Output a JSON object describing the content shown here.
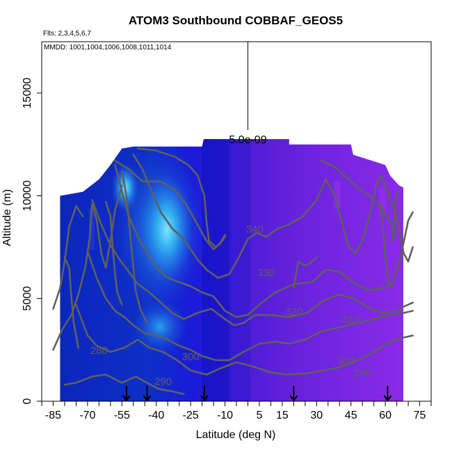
{
  "chart_data": {
    "type": "heatmap",
    "title": "ATOM3 Southbound COBBAF_GEOS5",
    "flights_label": "Flts: 2,3,4,5,6,7",
    "dates_label": "MMDD: 1001,1004,1006,1008,1011,1014",
    "xlabel": "Latitude (deg N)",
    "ylabel": "Altitude (m)",
    "xlim": [
      -90,
      80
    ],
    "ylim": [
      0,
      17500
    ],
    "x_ticks": [
      -85,
      -70,
      -55,
      -40,
      -25,
      -10,
      5,
      15,
      30,
      45,
      60,
      75
    ],
    "y_ticks": [
      0,
      5000,
      10000,
      15000
    ],
    "scale_bar_label": "5.0e-09",
    "scale_bar": {
      "x": 0,
      "y_from": 13200,
      "y_to": 17500
    },
    "flight_arrows_lat": [
      -53,
      -44,
      -19,
      20,
      61
    ],
    "contours": [
      {
        "label": "280",
        "points": [
          [
            -85,
            4500
          ],
          [
            -82,
            5500
          ],
          [
            -80,
            6800
          ],
          [
            -78,
            8500
          ],
          [
            -75,
            9500
          ],
          [
            -72,
            9000
          ]
        ]
      },
      {
        "label": "280",
        "points": [
          [
            -85,
            2500
          ],
          [
            -81,
            3500
          ],
          [
            -77,
            4200
          ],
          [
            -74,
            5200
          ],
          [
            -71,
            6500
          ],
          [
            -69,
            8000
          ],
          [
            -68,
            9600
          ],
          [
            -66,
            8800
          ],
          [
            -64,
            7200
          ],
          [
            -62,
            6500
          ],
          [
            -60,
            7800
          ],
          [
            -58,
            9300
          ],
          [
            -55,
            10500
          ]
        ]
      },
      {
        "label": "290",
        "points": [
          [
            -80,
            800
          ],
          [
            -75,
            900
          ],
          [
            -68,
            1200
          ],
          [
            -62,
            1300
          ],
          [
            -55,
            900
          ],
          [
            -49,
            1200
          ],
          [
            -44,
            900
          ],
          [
            -39,
            600
          ],
          [
            -34,
            500
          ],
          [
            -28,
            350
          ]
        ]
      },
      {
        "label": "300",
        "points": [
          [
            -75,
            4700
          ],
          [
            -70,
            3200
          ],
          [
            -66,
            2700
          ],
          [
            -60,
            2400
          ],
          [
            -54,
            2600
          ],
          [
            -48,
            3000
          ],
          [
            -43,
            2600
          ],
          [
            -37,
            2400
          ],
          [
            -31,
            2000
          ],
          [
            -25,
            1500
          ],
          [
            -18,
            1300
          ],
          [
            -12,
            1600
          ],
          [
            -5,
            1900
          ],
          [
            2,
            1700
          ],
          [
            10,
            1400
          ],
          [
            17,
            1300
          ],
          [
            25,
            1350
          ],
          [
            33,
            1500
          ],
          [
            40,
            1650
          ],
          [
            48,
            2000
          ],
          [
            55,
            2400
          ],
          [
            62,
            2900
          ],
          [
            68,
            3100
          ],
          [
            72,
            3200
          ]
        ]
      },
      {
        "label": "310",
        "points": [
          [
            -70,
            7300
          ],
          [
            -66,
            6000
          ],
          [
            -62,
            5000
          ],
          [
            -58,
            4400
          ],
          [
            -54,
            4100
          ],
          [
            -50,
            3700
          ],
          [
            -45,
            3300
          ],
          [
            -40,
            3200
          ],
          [
            -35,
            3000
          ],
          [
            -30,
            2700
          ],
          [
            -25,
            2500
          ],
          [
            -20,
            2200
          ],
          [
            -14,
            2000
          ],
          [
            -8,
            2000
          ],
          [
            -2,
            2400
          ],
          [
            5,
            2800
          ],
          [
            12,
            2900
          ],
          [
            18,
            2800
          ],
          [
            25,
            3000
          ],
          [
            32,
            3400
          ],
          [
            40,
            3600
          ],
          [
            48,
            3800
          ],
          [
            55,
            4000
          ],
          [
            62,
            4200
          ],
          [
            68,
            4300
          ],
          [
            72,
            4400
          ]
        ]
      },
      {
        "label": "320",
        "points": [
          [
            -68,
            9800
          ],
          [
            -64,
            8600
          ],
          [
            -60,
            7600
          ],
          [
            -56,
            6900
          ],
          [
            -52,
            6300
          ],
          [
            -48,
            5700
          ],
          [
            -43,
            5300
          ],
          [
            -38,
            4800
          ],
          [
            -33,
            4300
          ],
          [
            -28,
            4000
          ],
          [
            -22,
            4300
          ],
          [
            -16,
            4500
          ],
          [
            -10,
            4000
          ],
          [
            -6,
            3700
          ],
          [
            -2,
            3800
          ],
          [
            3,
            4200
          ],
          [
            10,
            4200
          ],
          [
            18,
            4100
          ],
          [
            26,
            4300
          ],
          [
            33,
            4900
          ],
          [
            40,
            5200
          ],
          [
            46,
            5000
          ],
          [
            52,
            4600
          ],
          [
            58,
            4300
          ],
          [
            64,
            4400
          ],
          [
            70,
            4700
          ],
          [
            72,
            4800
          ]
        ]
      },
      {
        "label": "330",
        "points": [
          [
            -58,
            11500
          ],
          [
            -55,
            10200
          ],
          [
            -52,
            9000
          ],
          [
            -48,
            8000
          ],
          [
            -44,
            7200
          ],
          [
            -40,
            6500
          ],
          [
            -35,
            6000
          ],
          [
            -30,
            5800
          ],
          [
            -25,
            5600
          ],
          [
            -20,
            5300
          ],
          [
            -15,
            5100
          ],
          [
            -10,
            4400
          ],
          [
            -5,
            4100
          ],
          [
            0,
            4200
          ],
          [
            5,
            4700
          ],
          [
            12,
            5300
          ],
          [
            20,
            5700
          ],
          [
            28,
            5800
          ],
          [
            34,
            6400
          ],
          [
            40,
            6300
          ],
          [
            46,
            5800
          ],
          [
            52,
            5400
          ],
          [
            58,
            5500
          ],
          [
            63,
            5700
          ],
          [
            67,
            7200
          ],
          [
            70,
            8800
          ],
          [
            72,
            9200
          ]
        ]
      },
      {
        "label": "340",
        "points": [
          [
            -50,
            12000
          ],
          [
            -46,
            11300
          ],
          [
            -42,
            10200
          ],
          [
            -38,
            9200
          ],
          [
            -33,
            8400
          ],
          [
            -28,
            7900
          ],
          [
            -22,
            6900
          ],
          [
            -18,
            6400
          ],
          [
            -13,
            6000
          ],
          [
            -8,
            6200
          ],
          [
            -4,
            7000
          ],
          [
            0,
            7900
          ],
          [
            4,
            8200
          ],
          [
            8,
            8000
          ],
          [
            13,
            8400
          ],
          [
            18,
            8600
          ],
          [
            24,
            9000
          ],
          [
            30,
            9800
          ],
          [
            34,
            10800
          ],
          [
            38,
            10000
          ],
          [
            41,
            8700
          ],
          [
            44,
            7500
          ],
          [
            47,
            7200
          ],
          [
            50,
            7800
          ],
          [
            53,
            9000
          ],
          [
            56,
            10500
          ],
          [
            58,
            11000
          ],
          [
            60,
            10500
          ],
          [
            62,
            9800
          ],
          [
            64,
            9300
          ],
          [
            66,
            8500
          ],
          [
            68,
            7200
          ],
          [
            70,
            6800
          ],
          [
            72,
            7500
          ]
        ]
      },
      {
        "label": "",
        "points": [
          [
            -58,
            11700
          ],
          [
            -52,
            11300
          ],
          [
            -46,
            10700
          ],
          [
            -38,
            10700
          ],
          [
            -32,
            10300
          ],
          [
            -27,
            9600
          ],
          [
            -22,
            8600
          ],
          [
            -18,
            7800
          ],
          [
            -15,
            7400
          ],
          [
            -12,
            7700
          ],
          [
            -10,
            8100
          ]
        ]
      },
      {
        "label": "",
        "points": [
          [
            -48,
            12300
          ],
          [
            -40,
            12200
          ],
          [
            -32,
            11900
          ],
          [
            -26,
            11500
          ],
          [
            -22,
            11000
          ],
          [
            -19,
            10000
          ],
          [
            -18,
            8700
          ],
          [
            -17,
            7800
          ],
          [
            -14,
            7500
          ],
          [
            -12,
            7700
          ],
          [
            -10,
            8000
          ]
        ]
      },
      {
        "label": "",
        "points": [
          [
            -55,
            11200
          ],
          [
            -53,
            10000
          ],
          [
            -52,
            8900
          ],
          [
            -51,
            7600
          ],
          [
            -50,
            6500
          ],
          [
            -49,
            5400
          ],
          [
            -47,
            4500
          ],
          [
            -44,
            3800
          ]
        ]
      },
      {
        "label": "",
        "points": [
          [
            -62,
            9700
          ],
          [
            -60,
            9000
          ],
          [
            -59,
            7500
          ],
          [
            -58,
            6200
          ],
          [
            -57,
            5300
          ],
          [
            -55,
            4700
          ]
        ]
      },
      {
        "label": "",
        "points": [
          [
            -80,
            7000
          ],
          [
            -78,
            6500
          ],
          [
            -77,
            5000
          ],
          [
            -76,
            3800
          ],
          [
            -74,
            2600
          ]
        ]
      },
      {
        "label": "",
        "points": [
          [
            32,
            11700
          ],
          [
            38,
            11400
          ],
          [
            44,
            10800
          ],
          [
            49,
            10300
          ],
          [
            53,
            10000
          ],
          [
            57,
            9600
          ],
          [
            61,
            9000
          ],
          [
            65,
            8000
          ]
        ]
      },
      {
        "label": "",
        "points": [
          [
            20,
            5500
          ],
          [
            22,
            6800
          ],
          [
            25,
            6600
          ],
          [
            27,
            6700
          ],
          [
            30,
            7000
          ]
        ]
      },
      {
        "label": "",
        "points": [
          [
            58,
            9600
          ],
          [
            59,
            8500
          ],
          [
            60,
            7000
          ],
          [
            61,
            6000
          ],
          [
            62,
            5600
          ]
        ]
      },
      {
        "label": "",
        "points": [
          [
            63,
            7800
          ],
          [
            64,
            9000
          ],
          [
            65,
            10200
          ]
        ]
      }
    ],
    "contour_label_positions": [
      {
        "text": "340",
        "lat": 3,
        "alt": 8200
      },
      {
        "text": "330",
        "lat": 8,
        "alt": 6100
      },
      {
        "text": "320",
        "lat": 20,
        "alt": 4200
      },
      {
        "text": "310",
        "lat": 45,
        "alt": 3800
      },
      {
        "text": "300",
        "lat": -25,
        "alt": 2000
      },
      {
        "text": "300",
        "lat": 43,
        "alt": 1800
      },
      {
        "text": "290",
        "lat": -37,
        "alt": 800
      },
      {
        "text": "290",
        "lat": 50,
        "alt": 1200
      },
      {
        "text": "280",
        "lat": -65,
        "alt": 2300
      }
    ]
  }
}
